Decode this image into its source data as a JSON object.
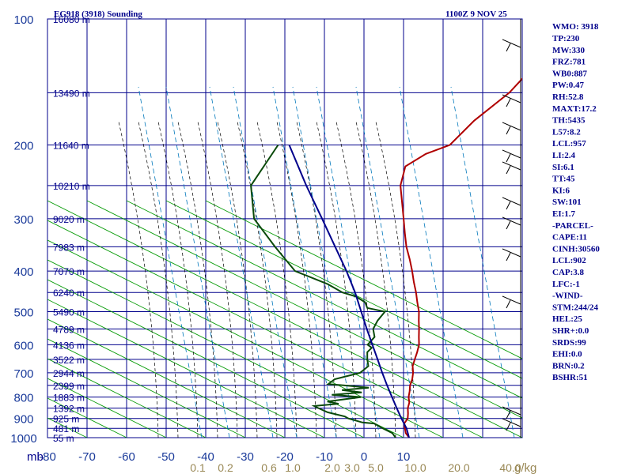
{
  "chart_data": {
    "type": "line",
    "title": "EG918 (3918) Sounding",
    "datetime": "1100Z  9 NOV 25",
    "x_axis_unit": "mb",
    "y_axis_unit": "",
    "temperature_ticks": [
      -80,
      -70,
      -60,
      -50,
      -40,
      -30,
      -20,
      -10,
      0,
      10
    ],
    "xlim": [
      -80,
      40
    ],
    "pressure_levels": [
      100,
      200,
      300,
      400,
      500,
      600,
      700,
      800,
      900,
      1000
    ],
    "pressure_tick_labels": [
      "100",
      "200",
      "300",
      "400",
      "500",
      "600",
      "700",
      "800",
      "900",
      "1000"
    ],
    "ylim": [
      100,
      1000
    ],
    "y_scale": "log",
    "height_labels": [
      {
        "p": 100,
        "label": "16080 m"
      },
      {
        "p": 150,
        "label": "13490 m"
      },
      {
        "p": 200,
        "label": "11640 m"
      },
      {
        "p": 250,
        "label": "10210 m"
      },
      {
        "p": 300,
        "label": "9020 m"
      },
      {
        "p": 350,
        "label": "7983 m"
      },
      {
        "p": 400,
        "label": "7070 m"
      },
      {
        "p": 450,
        "label": "6240 m"
      },
      {
        "p": 500,
        "label": "5490 m"
      },
      {
        "p": 550,
        "label": "4789 m"
      },
      {
        "p": 600,
        "label": "4136 m"
      },
      {
        "p": 650,
        "label": "3522 m"
      },
      {
        "p": 700,
        "label": "2944 m"
      },
      {
        "p": 750,
        "label": "2399 m"
      },
      {
        "p": 800,
        "label": "1883 m"
      },
      {
        "p": 850,
        "label": "1392 m"
      },
      {
        "p": 900,
        "label": "925 m"
      },
      {
        "p": 950,
        "label": "481 m"
      },
      {
        "p": 1000,
        "label": "55 m"
      }
    ],
    "mixing_ratio_labels": [
      "0.1",
      "0.2",
      "0.6",
      "1.0",
      "2.0",
      "3.0",
      "5.0",
      "10.0",
      "20.0",
      "40.0"
    ],
    "mixing_ratio_unit": "g/kg",
    "series": [
      {
        "color": "#b00000",
        "points": [
          [
            1000,
            11.4
          ],
          [
            975,
            9.4
          ],
          [
            950,
            8.0
          ],
          [
            925,
            6.6
          ],
          [
            900,
            6.2
          ],
          [
            875,
            5.0
          ],
          [
            850,
            3.6
          ],
          [
            825,
            2.6
          ],
          [
            800,
            1.0
          ],
          [
            775,
            -0.2
          ],
          [
            750,
            -1.6
          ],
          [
            725,
            -2.6
          ],
          [
            700,
            -4.0
          ],
          [
            675,
            -5.8
          ],
          [
            650,
            -7.0
          ],
          [
            625,
            -8.2
          ],
          [
            600,
            -9.6
          ],
          [
            575,
            -11.6
          ],
          [
            550,
            -13.6
          ],
          [
            525,
            -15.8
          ],
          [
            500,
            -18.0
          ],
          [
            475,
            -20.8
          ],
          [
            450,
            -23.6
          ],
          [
            425,
            -26.8
          ],
          [
            400,
            -30.0
          ],
          [
            375,
            -33.6
          ],
          [
            350,
            -37.6
          ],
          [
            325,
            -41.4
          ],
          [
            300,
            -45.4
          ],
          [
            275,
            -49.8
          ],
          [
            250,
            -54.6
          ],
          [
            225,
            -58.2
          ],
          [
            210,
            -56.2
          ],
          [
            200,
            -52.4
          ],
          [
            175,
            -52.4
          ],
          [
            150,
            -50.6
          ],
          [
            125,
            -51.2
          ],
          [
            100,
            -54.4
          ]
        ]
      },
      {
        "color": "#0a4a0a",
        "points": [
          [
            1000,
            8.0
          ],
          [
            975,
            6.0
          ],
          [
            950,
            2.4
          ],
          [
            925,
            -1.0
          ],
          [
            920,
            -4.2
          ],
          [
            900,
            -8.8
          ],
          [
            890,
            -10.2
          ],
          [
            870,
            -15.6
          ],
          [
            850,
            -19.0
          ],
          [
            840,
            -20.6
          ],
          [
            830,
            -15.0
          ],
          [
            820,
            -18.4
          ],
          [
            800,
            -11.0
          ],
          [
            790,
            -19.0
          ],
          [
            780,
            -12.0
          ],
          [
            770,
            -17.6
          ],
          [
            760,
            -11.4
          ],
          [
            750,
            -18.4
          ],
          [
            745,
            -22.6
          ],
          [
            725,
            -22.2
          ],
          [
            700,
            -17.4
          ],
          [
            675,
            -17.0
          ],
          [
            650,
            -19.0
          ],
          [
            625,
            -20.8
          ],
          [
            610,
            -20.8
          ],
          [
            600,
            -22.6
          ],
          [
            575,
            -22.8
          ],
          [
            550,
            -25.2
          ],
          [
            525,
            -26.2
          ],
          [
            500,
            -26.6
          ],
          [
            490,
            -32.0
          ],
          [
            475,
            -34.0
          ],
          [
            460,
            -37.8
          ],
          [
            450,
            -42.2
          ],
          [
            430,
            -48.0
          ],
          [
            400,
            -59.6
          ],
          [
            350,
            -70.8
          ],
          [
            300,
            -83.2
          ],
          [
            250,
            -92.4
          ],
          [
            200,
            -95.8
          ]
        ]
      },
      {
        "color": "#00008b",
        "points": [
          [
            1000,
            11.4
          ],
          [
            950,
            8.4
          ],
          [
            900,
            4.6
          ],
          [
            850,
            0.8
          ],
          [
            800,
            -3.2
          ],
          [
            750,
            -7.4
          ],
          [
            700,
            -11.8
          ],
          [
            650,
            -16.4
          ],
          [
            600,
            -21.4
          ],
          [
            550,
            -26.8
          ],
          [
            500,
            -32.6
          ],
          [
            450,
            -39.0
          ],
          [
            400,
            -46.6
          ],
          [
            350,
            -55.6
          ],
          [
            300,
            -66.0
          ],
          [
            250,
            -78.4
          ],
          [
            200,
            -93.0
          ]
        ]
      }
    ],
    "wind_barbs_present": true
  },
  "indices": {
    "header": "WMO: 3918",
    "rows": [
      "TP:230",
      "MW:330",
      "FRZ:781",
      "WB0:887",
      "PW:0.47",
      "RH:52.8",
      "MAXT:17.2",
      "TH:5435",
      "L57:8.2",
      "LCL:957",
      "LI:2.4",
      "SI:6.1",
      "TT:45",
      "KI:6",
      "SW:101",
      "EI:1.7",
      "-PARCEL-",
      "CAPE:11",
      "CINH:30560",
      "LCL:902",
      "CAP:3.8",
      "LFC:-1",
      "-WIND-",
      "STM:244/24",
      "HEL:25",
      "SHR+:0.0",
      "SRDS:99",
      "EHI:0.0",
      "BRN:0.2",
      "BSHR:51"
    ]
  },
  "colors": {
    "frame": "#00008b",
    "dry_adiabat": "#009900",
    "moist_adiabat": "#000000",
    "mixing_ratio": "#0077bb",
    "axis_text": "#00008b",
    "tick_numbers": "#1a3a9a",
    "mixing_ratio_text": "#998855",
    "title_text": "#00008b"
  }
}
